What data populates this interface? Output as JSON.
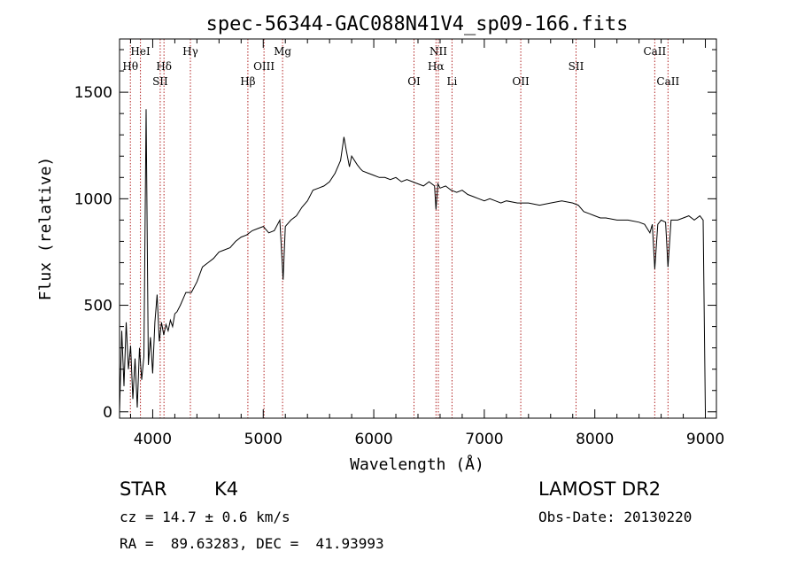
{
  "chart_data": {
    "type": "line",
    "title": "spec-56344-GAC088N41V4_sp09-166.fits",
    "xlabel": "Wavelength (Å)",
    "ylabel": "Flux (relative)",
    "xlim": [
      3700,
      9100
    ],
    "ylim": [
      -30,
      1750
    ],
    "xticks": [
      4000,
      5000,
      6000,
      7000,
      8000,
      9000
    ],
    "yticks": [
      0,
      500,
      1000,
      1500
    ],
    "grid": false,
    "series": [
      {
        "x": [
          3700,
          3720,
          3740,
          3760,
          3780,
          3800,
          3820,
          3840,
          3860,
          3880,
          3900,
          3920,
          3940,
          3960,
          3980,
          4000,
          4020,
          4040,
          4060,
          4080,
          4100,
          4120,
          4140,
          4160,
          4180,
          4200,
          4220,
          4250,
          4300,
          4350,
          4400,
          4450,
          4500,
          4550,
          4600,
          4650,
          4700,
          4750,
          4800,
          4850,
          4900,
          4950,
          5000,
          5050,
          5100,
          5150,
          5180,
          5200,
          5250,
          5300,
          5350,
          5400,
          5450,
          5500,
          5550,
          5600,
          5650,
          5700,
          5730,
          5750,
          5780,
          5800,
          5850,
          5880,
          5900,
          5950,
          6000,
          6050,
          6100,
          6150,
          6200,
          6250,
          6300,
          6350,
          6400,
          6450,
          6500,
          6550,
          6563,
          6580,
          6600,
          6650,
          6700,
          6750,
          6800,
          6850,
          6900,
          6950,
          7000,
          7050,
          7100,
          7150,
          7200,
          7300,
          7400,
          7500,
          7600,
          7700,
          7800,
          7850,
          7900,
          7950,
          8000,
          8050,
          8100,
          8200,
          8300,
          8400,
          8450,
          8498,
          8520,
          8542,
          8570,
          8600,
          8640,
          8662,
          8690,
          8750,
          8800,
          8850,
          8900,
          8950,
          8980,
          9000
        ],
        "values": [
          0,
          380,
          120,
          420,
          200,
          310,
          60,
          250,
          20,
          300,
          150,
          260,
          1420,
          220,
          350,
          180,
          420,
          550,
          330,
          420,
          360,
          410,
          380,
          430,
          400,
          460,
          470,
          500,
          560,
          560,
          610,
          680,
          700,
          720,
          750,
          760,
          770,
          800,
          820,
          830,
          850,
          860,
          870,
          840,
          850,
          900,
          620,
          870,
          900,
          920,
          960,
          990,
          1040,
          1050,
          1060,
          1080,
          1120,
          1180,
          1290,
          1230,
          1150,
          1200,
          1160,
          1140,
          1130,
          1120,
          1110,
          1100,
          1100,
          1090,
          1100,
          1080,
          1090,
          1080,
          1070,
          1060,
          1080,
          1060,
          950,
          1070,
          1050,
          1060,
          1040,
          1030,
          1040,
          1020,
          1010,
          1000,
          990,
          1000,
          990,
          980,
          990,
          980,
          980,
          970,
          980,
          990,
          980,
          970,
          940,
          930,
          920,
          910,
          910,
          900,
          900,
          890,
          880,
          840,
          880,
          670,
          880,
          900,
          890,
          680,
          900,
          900,
          910,
          920,
          900,
          920,
          900,
          0
        ]
      }
    ],
    "lines": [
      {
        "label": "Hθ",
        "x": 3798,
        "row": 2
      },
      {
        "label": "HeI",
        "x": 3889,
        "row": 1
      },
      {
        "label": "Hδ",
        "x": 4102,
        "row": 2
      },
      {
        "label": "SII",
        "x": 4068,
        "row": 3
      },
      {
        "label": "Hγ",
        "x": 4341,
        "row": 1
      },
      {
        "label": "Hβ",
        "x": 4861,
        "row": 3
      },
      {
        "label": "OIII",
        "x": 5007,
        "row": 2
      },
      {
        "label": "Mg",
        "x": 5175,
        "row": 1
      },
      {
        "label": "OI",
        "x": 6364,
        "row": 3
      },
      {
        "label": "NII",
        "x": 6584,
        "row": 1
      },
      {
        "label": "Hα",
        "x": 6563,
        "row": 2
      },
      {
        "label": "Li",
        "x": 6708,
        "row": 3
      },
      {
        "label": "OII",
        "x": 7330,
        "row": 3
      },
      {
        "label": "SII",
        "x": 7830,
        "row": 2
      },
      {
        "label": "CaII",
        "x": 8542,
        "row": 1
      },
      {
        "label": "CaII",
        "x": 8662,
        "row": 3
      }
    ]
  },
  "footer": {
    "class_label": "STAR",
    "subclass": "K4",
    "survey": "LAMOST DR2",
    "cz": "cz = 14.7 ± 0.6 km/s",
    "obs_date": "Obs-Date: 20130220",
    "coords": "RA =  89.63283, DEC =  41.93993"
  },
  "colors": {
    "line_marker": "#b22222",
    "spectrum": "#000000"
  }
}
